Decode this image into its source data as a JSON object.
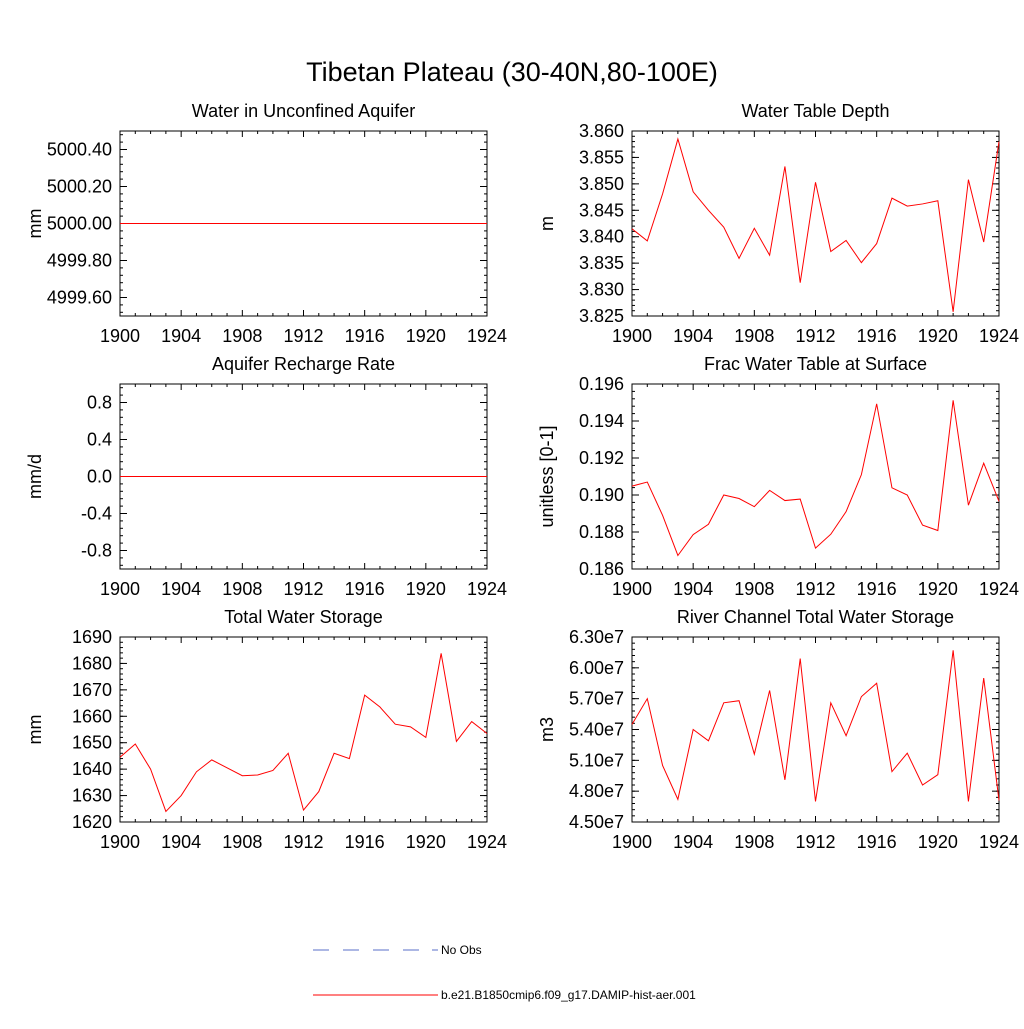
{
  "title": "Tibetan Plateau (30-40N,80-100E)",
  "colors": {
    "model": "#ff0000",
    "obs": "#5a6fc8",
    "axis": "#000000"
  },
  "legend": {
    "placement": "bottom-center",
    "entries": [
      {
        "label": "No Obs",
        "style": "dashed",
        "color": "#5a6fc8"
      },
      {
        "label": "b.e21.B1850cmip6.f09_g17.DAMIP-hist-aer.001",
        "style": "solid",
        "color": "#ff0000"
      }
    ]
  },
  "chart_data": [
    {
      "type": "line",
      "title": "Water in Unconfined Aquifer",
      "ylabel": "mm",
      "xlabel": "",
      "xlim": [
        1900,
        1924
      ],
      "xticks": [
        1900,
        1904,
        1908,
        1912,
        1916,
        1920,
        1924
      ],
      "ylim": [
        4999.5,
        5000.5
      ],
      "yticks": [
        4999.6,
        4999.8,
        5000.0,
        5000.2,
        5000.4
      ],
      "ytick_labels": [
        "4999.60",
        "4999.80",
        "5000.00",
        "5000.20",
        "5000.40"
      ],
      "grid": false,
      "x": [
        1900,
        1901,
        1902,
        1903,
        1904,
        1905,
        1906,
        1907,
        1908,
        1909,
        1910,
        1911,
        1912,
        1913,
        1914,
        1915,
        1916,
        1917,
        1918,
        1919,
        1920,
        1921,
        1922,
        1923,
        1924
      ],
      "series": [
        {
          "name": "b.e21.B1850cmip6.f09_g17.DAMIP-hist-aer.001",
          "values": [
            5000,
            5000,
            5000,
            5000,
            5000,
            5000,
            5000,
            5000,
            5000,
            5000,
            5000,
            5000,
            5000,
            5000,
            5000,
            5000,
            5000,
            5000,
            5000,
            5000,
            5000,
            5000,
            5000,
            5000,
            5000
          ]
        }
      ]
    },
    {
      "type": "line",
      "title": "Water Table Depth",
      "ylabel": "m",
      "xlabel": "",
      "xlim": [
        1900,
        1924
      ],
      "xticks": [
        1900,
        1904,
        1908,
        1912,
        1916,
        1920,
        1924
      ],
      "ylim": [
        3.825,
        3.86
      ],
      "yticks": [
        3.825,
        3.83,
        3.835,
        3.84,
        3.845,
        3.85,
        3.855,
        3.86
      ],
      "ytick_labels": [
        "3.825",
        "3.830",
        "3.835",
        "3.840",
        "3.845",
        "3.850",
        "3.855",
        "3.860"
      ],
      "grid": false,
      "x": [
        1900,
        1901,
        1902,
        1903,
        1904,
        1905,
        1906,
        1907,
        1908,
        1909,
        1910,
        1911,
        1912,
        1913,
        1914,
        1915,
        1916,
        1917,
        1918,
        1919,
        1920,
        1921,
        1922,
        1923,
        1924
      ],
      "series": [
        {
          "name": "b.e21.B1850cmip6.f09_g17.DAMIP-hist-aer.001",
          "values": [
            3.8415,
            3.8392,
            3.8481,
            3.8585,
            3.8485,
            3.845,
            3.8418,
            3.8359,
            3.8416,
            3.8365,
            3.8533,
            3.8313,
            3.8503,
            3.8372,
            3.8393,
            3.8351,
            3.8387,
            3.8473,
            3.8458,
            3.8462,
            3.8468,
            3.8258,
            3.8508,
            3.839,
            3.858
          ]
        }
      ]
    },
    {
      "type": "line",
      "title": "Aquifer Recharge Rate",
      "ylabel": "mm/d",
      "xlabel": "",
      "xlim": [
        1900,
        1924
      ],
      "xticks": [
        1900,
        1904,
        1908,
        1912,
        1916,
        1920,
        1924
      ],
      "ylim": [
        -1.0,
        1.0
      ],
      "yticks": [
        -0.8,
        -0.4,
        0.0,
        0.4,
        0.8
      ],
      "ytick_labels": [
        "-0.8",
        "-0.4",
        "0.0",
        "0.4",
        "0.8"
      ],
      "grid": false,
      "x": [
        1900,
        1901,
        1902,
        1903,
        1904,
        1905,
        1906,
        1907,
        1908,
        1909,
        1910,
        1911,
        1912,
        1913,
        1914,
        1915,
        1916,
        1917,
        1918,
        1919,
        1920,
        1921,
        1922,
        1923,
        1924
      ],
      "series": [
        {
          "name": "b.e21.B1850cmip6.f09_g17.DAMIP-hist-aer.001",
          "values": [
            0,
            0,
            0,
            0,
            0,
            0,
            0,
            0,
            0,
            0,
            0,
            0,
            0,
            0,
            0,
            0,
            0,
            0,
            0,
            0,
            0,
            0,
            0,
            0,
            0
          ]
        }
      ]
    },
    {
      "type": "line",
      "title": "Frac Water Table at Surface",
      "ylabel": "unitless [0-1]",
      "xlabel": "",
      "xlim": [
        1900,
        1924
      ],
      "xticks": [
        1900,
        1904,
        1908,
        1912,
        1916,
        1920,
        1924
      ],
      "ylim": [
        0.186,
        0.196
      ],
      "yticks": [
        0.186,
        0.188,
        0.19,
        0.192,
        0.194,
        0.196
      ],
      "ytick_labels": [
        "0.186",
        "0.188",
        "0.190",
        "0.192",
        "0.194",
        "0.196"
      ],
      "grid": false,
      "x": [
        1900,
        1901,
        1902,
        1903,
        1904,
        1905,
        1906,
        1907,
        1908,
        1909,
        1910,
        1911,
        1912,
        1913,
        1914,
        1915,
        1916,
        1917,
        1918,
        1919,
        1920,
        1921,
        1922,
        1923,
        1924
      ],
      "series": [
        {
          "name": "b.e21.B1850cmip6.f09_g17.DAMIP-hist-aer.001",
          "values": [
            0.19048,
            0.1907,
            0.1889,
            0.18673,
            0.18786,
            0.18842,
            0.19,
            0.18981,
            0.18937,
            0.19025,
            0.1897,
            0.18978,
            0.18713,
            0.18788,
            0.1891,
            0.1911,
            0.19493,
            0.19039,
            0.19,
            0.18837,
            0.18808,
            0.19512,
            0.18945,
            0.19172,
            0.18966
          ]
        }
      ]
    },
    {
      "type": "line",
      "title": "Total Water Storage",
      "ylabel": "mm",
      "xlabel": "",
      "xlim": [
        1900,
        1924
      ],
      "xticks": [
        1900,
        1904,
        1908,
        1912,
        1916,
        1920,
        1924
      ],
      "ylim": [
        1620,
        1690
      ],
      "yticks": [
        1620,
        1630,
        1640,
        1650,
        1660,
        1670,
        1680,
        1690
      ],
      "ytick_labels": [
        "1620",
        "1630",
        "1640",
        "1650",
        "1660",
        "1670",
        "1680",
        "1690"
      ],
      "grid": false,
      "x": [
        1900,
        1901,
        1902,
        1903,
        1904,
        1905,
        1906,
        1907,
        1908,
        1909,
        1910,
        1911,
        1912,
        1913,
        1914,
        1915,
        1916,
        1917,
        1918,
        1919,
        1920,
        1921,
        1922,
        1923,
        1924
      ],
      "series": [
        {
          "name": "b.e21.B1850cmip6.f09_g17.DAMIP-hist-aer.001",
          "values": [
            1644.5,
            1649.5,
            1640.0,
            1624.0,
            1630.0,
            1639.0,
            1643.5,
            1640.5,
            1637.5,
            1637.8,
            1639.5,
            1646.0,
            1624.5,
            1631.5,
            1646.0,
            1644.0,
            1668.0,
            1663.5,
            1657.0,
            1656.0,
            1652.0,
            1683.8,
            1650.5,
            1658.0,
            1653.5
          ]
        }
      ]
    },
    {
      "type": "line",
      "title": "River Channel Total Water Storage",
      "ylabel": "m3",
      "xlabel": "",
      "xlim": [
        1900,
        1924
      ],
      "xticks": [
        1900,
        1904,
        1908,
        1912,
        1916,
        1920,
        1924
      ],
      "ylim": [
        45000000,
        63000000
      ],
      "yticks": [
        45000000,
        48000000,
        51000000,
        54000000,
        57000000,
        60000000,
        63000000
      ],
      "ytick_labels": [
        "4.50e7",
        "4.80e7",
        "5.10e7",
        "5.40e7",
        "5.70e7",
        "6.00e7",
        "6.30e7"
      ],
      "grid": false,
      "x": [
        1900,
        1901,
        1902,
        1903,
        1904,
        1905,
        1906,
        1907,
        1908,
        1909,
        1910,
        1911,
        1912,
        1913,
        1914,
        1915,
        1916,
        1917,
        1918,
        1919,
        1920,
        1921,
        1922,
        1923,
        1924
      ],
      "series": [
        {
          "name": "b.e21.B1850cmip6.f09_g17.DAMIP-hist-aer.001",
          "values": [
            54500000,
            57000000,
            50500000,
            47200000,
            54000000,
            52900000,
            56600000,
            56800000,
            51600000,
            57800000,
            49100000,
            60900000,
            47000000,
            56600000,
            53400000,
            57200000,
            58500000,
            49900000,
            51700000,
            48600000,
            49600000,
            61700000,
            47000000,
            59000000,
            47100000
          ]
        }
      ]
    }
  ]
}
